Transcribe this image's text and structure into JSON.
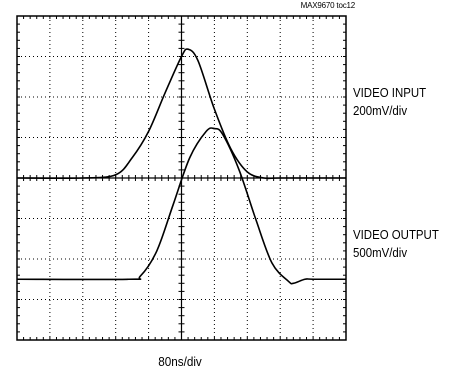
{
  "figure_id": "MAX9670 toc12",
  "chart_data": {
    "type": "line",
    "time_scale": "80ns/div",
    "divisions": {
      "x": 10,
      "y": 8
    },
    "grid": "dotted",
    "series": [
      {
        "name": "VIDEO INPUT",
        "scale": "200mV/div",
        "x_div": [
          0.0,
          2.0,
          3.0,
          3.5,
          4.0,
          4.5,
          5.0,
          5.2,
          5.5,
          6.0,
          6.5,
          7.0,
          7.5,
          8.0,
          10.0
        ],
        "y_div": [
          4.0,
          4.0,
          4.08,
          4.5,
          5.15,
          6.1,
          7.0,
          7.18,
          6.9,
          5.7,
          4.72,
          4.15,
          4.0,
          4.0,
          4.0
        ]
      },
      {
        "name": "VIDEO OUTPUT",
        "scale": "500mV/div",
        "x_div": [
          0.0,
          3.4,
          3.75,
          4.25,
          4.75,
          5.25,
          5.75,
          6.0,
          6.25,
          6.75,
          7.25,
          7.75,
          8.25,
          8.4,
          8.75,
          9.0,
          10.0
        ],
        "y_div": [
          0.0,
          0.0,
          0.08,
          0.7,
          1.85,
          3.0,
          3.65,
          3.72,
          3.58,
          2.7,
          1.5,
          0.4,
          -0.05,
          -0.1,
          0.0,
          0.0,
          0.0
        ]
      }
    ]
  },
  "labels": {
    "input_name": "VIDEO INPUT",
    "input_scale": "200mV/div",
    "output_name": "VIDEO OUTPUT",
    "output_scale": "500mV/div",
    "x_scale": "80ns/div"
  }
}
